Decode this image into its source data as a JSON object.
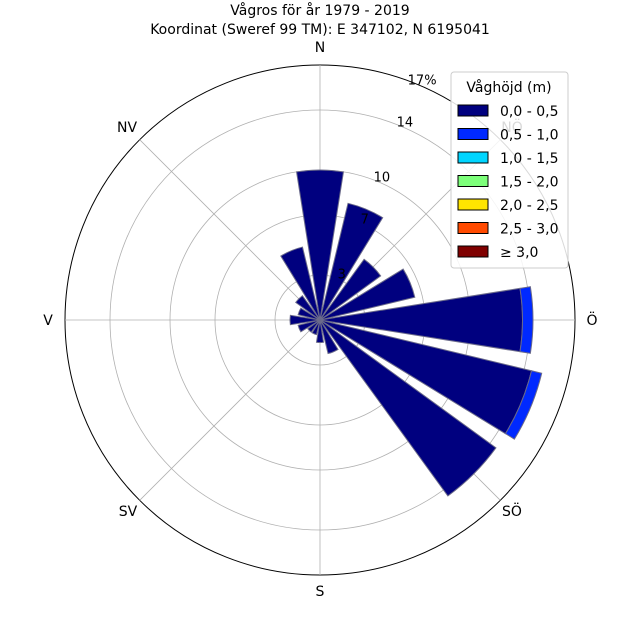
{
  "chart_data": {
    "type": "windrose",
    "title_lines": [
      "Vågros för år 1979 - 2019",
      "Koordinat (Sweref 99 TM): E 347102, N 6195041"
    ],
    "direction_labels": [
      "N",
      "NV",
      "V",
      "SV",
      "S",
      "SÖ",
      "Ö",
      "NÖ"
    ],
    "radial_ticks": [
      3,
      7,
      10,
      14,
      17
    ],
    "radial_max_label": "17%",
    "radial_max": 17,
    "legend": {
      "title": "Våghöjd (m)",
      "placement": "top-right",
      "entries": [
        {
          "label": "0,0 - 0,5",
          "color": "#00007f"
        },
        {
          "label": "0,5 - 1,0",
          "color": "#0029ff"
        },
        {
          "label": "1,0 - 1,5",
          "color": "#00d5ff"
        },
        {
          "label": "1,5 - 2,0",
          "color": "#7dff7a"
        },
        {
          "label": "2,0 - 2,5",
          "color": "#ffe500"
        },
        {
          "label": "2,5 - 3,0",
          "color": "#ff4a00"
        },
        {
          "label": "≥ 3,0",
          "color": "#7f0000"
        }
      ]
    },
    "sectors": [
      {
        "direction_deg": 0,
        "values": [
          10.0,
          0,
          0,
          0,
          0,
          0,
          0
        ]
      },
      {
        "direction_deg": 22.5,
        "values": [
          8.0,
          0,
          0,
          0,
          0,
          0,
          0
        ]
      },
      {
        "direction_deg": 45,
        "values": [
          5.0,
          0,
          0,
          0,
          0,
          0,
          0
        ]
      },
      {
        "direction_deg": 67.5,
        "values": [
          6.5,
          0,
          0,
          0,
          0,
          0,
          0
        ]
      },
      {
        "direction_deg": 90,
        "values": [
          13.5,
          0.7,
          0,
          0,
          0,
          0,
          0
        ]
      },
      {
        "direction_deg": 112.5,
        "values": [
          14.5,
          0.7,
          0,
          0,
          0,
          0,
          0
        ]
      },
      {
        "direction_deg": 135,
        "values": [
          14.5,
          0,
          0,
          0,
          0,
          0,
          0
        ]
      },
      {
        "direction_deg": 157.5,
        "values": [
          2.3,
          0,
          0,
          0,
          0,
          0,
          0
        ]
      },
      {
        "direction_deg": 180,
        "values": [
          1.5,
          0,
          0,
          0,
          0,
          0,
          0
        ]
      },
      {
        "direction_deg": 202.5,
        "values": [
          1.0,
          0,
          0,
          0,
          0,
          0,
          0
        ]
      },
      {
        "direction_deg": 225,
        "values": [
          1.0,
          0,
          0,
          0,
          0,
          0,
          0
        ]
      },
      {
        "direction_deg": 247.5,
        "values": [
          1.5,
          0,
          0,
          0,
          0,
          0,
          0
        ]
      },
      {
        "direction_deg": 270,
        "values": [
          2.0,
          0,
          0,
          0,
          0,
          0,
          0
        ]
      },
      {
        "direction_deg": 292.5,
        "values": [
          1.5,
          0,
          0,
          0,
          0,
          0,
          0
        ]
      },
      {
        "direction_deg": 315,
        "values": [
          2.0,
          0,
          0,
          0,
          0,
          0,
          0
        ]
      },
      {
        "direction_deg": 337.5,
        "values": [
          5.0,
          0,
          0,
          0,
          0,
          0,
          0
        ]
      }
    ],
    "sector_width_deg": 18,
    "grid": true
  }
}
